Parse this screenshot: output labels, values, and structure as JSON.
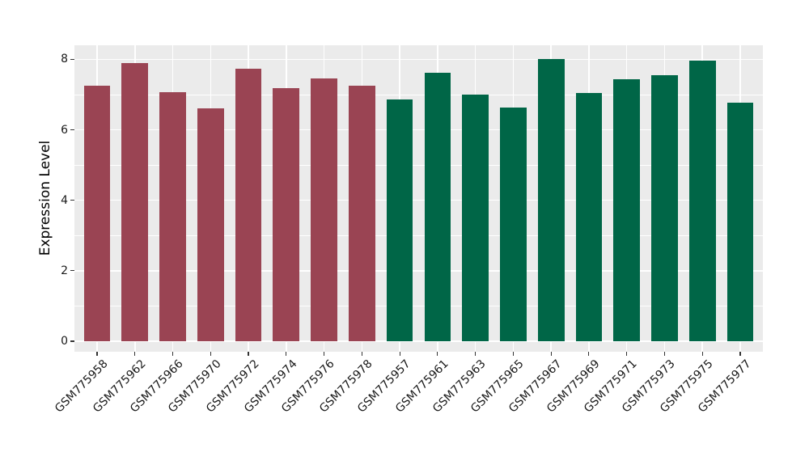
{
  "chart_data": {
    "type": "bar",
    "title": "",
    "xlabel": "",
    "ylabel": "Expression Level",
    "ylim": [
      0,
      8.4
    ],
    "yticks": [
      0,
      2,
      4,
      6,
      8
    ],
    "yticks_minor": [
      1,
      3,
      5,
      7
    ],
    "grid": "white major and minor gridlines on grey panel",
    "legend_position": "none",
    "panel_background": "#EBEBEB",
    "gridline_color": "#FFFFFF",
    "tick_mark_color": "#333333",
    "axis_text_color": "#1A1A1A",
    "categories": [
      "GSM775958",
      "GSM775962",
      "GSM775966",
      "GSM775970",
      "GSM775972",
      "GSM775974",
      "GSM775976",
      "GSM775978",
      "GSM775957",
      "GSM775961",
      "GSM775963",
      "GSM775965",
      "GSM775967",
      "GSM775969",
      "GSM775971",
      "GSM775973",
      "GSM775975",
      "GSM775977"
    ],
    "values": [
      7.25,
      7.9,
      7.06,
      6.6,
      7.73,
      7.18,
      7.45,
      7.26,
      6.86,
      7.61,
      7.01,
      6.64,
      8.0,
      7.05,
      7.44,
      7.55,
      7.96,
      6.78
    ],
    "groups": [
      "maroon",
      "maroon",
      "maroon",
      "maroon",
      "maroon",
      "maroon",
      "maroon",
      "maroon",
      "green",
      "green",
      "green",
      "green",
      "green",
      "green",
      "green",
      "green",
      "green",
      "green"
    ],
    "group_colors": {
      "maroon": "#9A4453",
      "green": "#006647"
    }
  }
}
